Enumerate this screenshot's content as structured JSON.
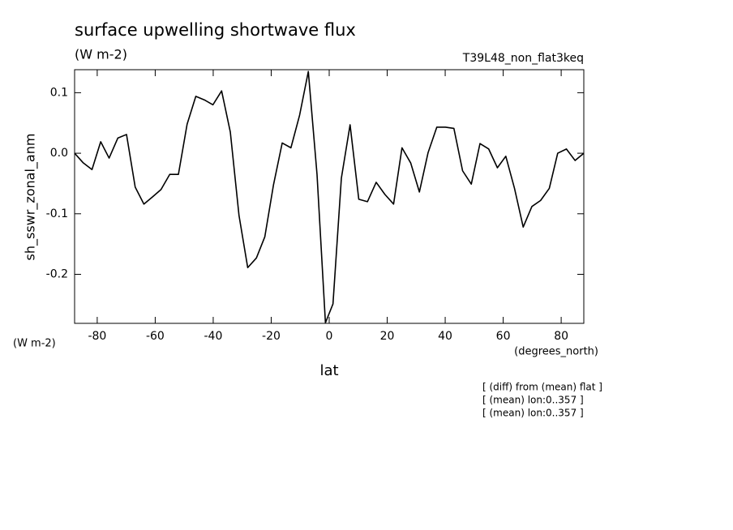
{
  "chart_data": {
    "type": "line",
    "title": "surface upwelling shortwave flux",
    "subtitle": "(W m-2)",
    "run_label": "T39L48_non_flat3keq",
    "y_label": "sh_sswr_zonal_anm",
    "y_unit": "(W m-2)",
    "x_unit": "(degrees_north)",
    "x_label": "lat",
    "annotations": [
      "[ (diff) from (mean) flat ]",
      "[ (mean) lon:0..357 ]",
      "[ (mean) lon:0..357 ]"
    ],
    "x": [
      -87.8,
      -84.8,
      -81.8,
      -78.8,
      -75.9,
      -72.9,
      -69.9,
      -66.9,
      -63.9,
      -60.9,
      -58.0,
      -55.0,
      -52.0,
      -49.0,
      -46.0,
      -43.0,
      -40.1,
      -37.1,
      -34.1,
      -31.1,
      -28.1,
      -25.1,
      -22.2,
      -19.2,
      -16.2,
      -13.2,
      -10.2,
      -7.2,
      -4.2,
      -1.3,
      1.3,
      4.2,
      7.2,
      10.2,
      13.2,
      16.2,
      19.2,
      22.2,
      25.1,
      28.1,
      31.1,
      34.1,
      37.1,
      40.1,
      43.0,
      46.0,
      49.0,
      52.0,
      55.0,
      58.0,
      60.9,
      63.9,
      66.9,
      69.9,
      72.9,
      75.9,
      78.8,
      81.8,
      84.8,
      87.8
    ],
    "series": [
      {
        "color": "#000000",
        "values": [
          0.0,
          -0.016,
          -0.027,
          0.019,
          -0.008,
          0.025,
          0.031,
          -0.056,
          -0.084,
          -0.072,
          -0.06,
          -0.035,
          -0.035,
          0.048,
          0.094,
          0.088,
          0.08,
          0.103,
          0.035,
          -0.103,
          -0.189,
          -0.173,
          -0.138,
          -0.052,
          0.017,
          0.009,
          0.063,
          0.135,
          -0.035,
          -0.28,
          -0.249,
          -0.041,
          0.047,
          -0.076,
          -0.08,
          -0.048,
          -0.068,
          -0.084,
          0.009,
          -0.016,
          -0.064,
          0.001,
          0.043,
          0.043,
          0.041,
          -0.029,
          -0.051,
          0.016,
          0.007,
          -0.024,
          -0.005,
          -0.058,
          -0.122,
          -0.088,
          -0.078,
          -0.058,
          0.0,
          0.007,
          -0.012,
          0.0
        ]
      }
    ],
    "xlim": [
      -87.8,
      87.8
    ],
    "ylim": [
      -0.281,
      0.138
    ],
    "xticks": [
      -80,
      -60,
      -40,
      -20,
      0,
      20,
      40,
      60,
      80
    ],
    "yticks": [
      0.1,
      {
        "value": 0,
        "label": "0.0"
      },
      -0.1,
      -0.2
    ]
  }
}
